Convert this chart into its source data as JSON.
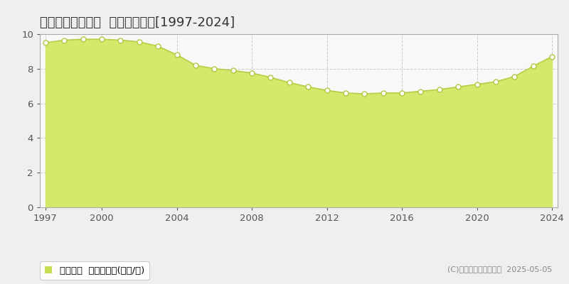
{
  "title": "仙台市泉区根白石  基準地価推移[1997-2024]",
  "years": [
    1997,
    1998,
    1999,
    2000,
    2001,
    2002,
    2003,
    2004,
    2005,
    2006,
    2007,
    2008,
    2009,
    2010,
    2011,
    2012,
    2013,
    2014,
    2015,
    2016,
    2017,
    2018,
    2019,
    2020,
    2021,
    2022,
    2023,
    2024
  ],
  "values": [
    9.5,
    9.65,
    9.7,
    9.7,
    9.65,
    9.55,
    9.3,
    8.8,
    8.2,
    8.0,
    7.9,
    7.75,
    7.5,
    7.2,
    6.95,
    6.75,
    6.6,
    6.55,
    6.6,
    6.6,
    6.7,
    6.8,
    6.95,
    7.1,
    7.25,
    7.55,
    8.15,
    8.7
  ],
  "fill_color": "#d4e96b",
  "line_color": "#b8cc44",
  "marker_color_face": "#ffffff",
  "marker_color_edge": "#b0c840",
  "background_color": "#efefef",
  "plot_bg_color": "#f8f8f8",
  "grid_color": "#cccccc",
  "ylim": [
    0,
    10
  ],
  "yticks": [
    0,
    2,
    4,
    6,
    8,
    10
  ],
  "xticks": [
    1997,
    2000,
    2004,
    2008,
    2012,
    2016,
    2020,
    2024
  ],
  "legend_label": "基準地価  平均坪単価(万円/坪)",
  "legend_marker_color": "#c8dc50",
  "copyright_text": "(C)土地価格ドットコム  2025-05-05",
  "title_fontsize": 13,
  "tick_fontsize": 9.5,
  "legend_fontsize": 9.5,
  "copyright_fontsize": 8
}
